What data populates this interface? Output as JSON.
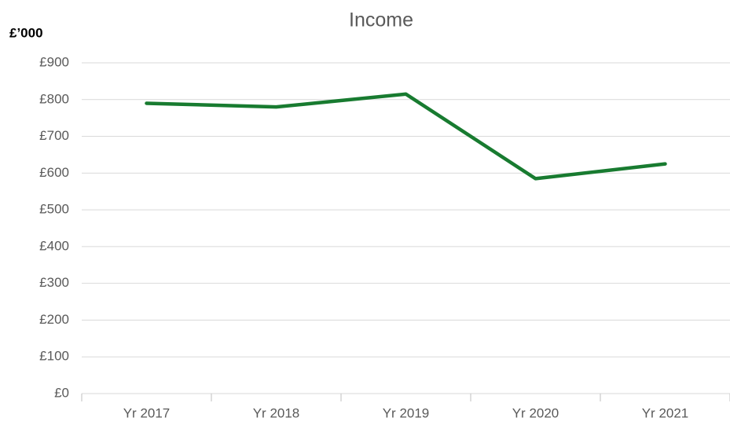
{
  "chart_data": {
    "type": "line",
    "title": "Income",
    "y_label": "£’000",
    "categories": [
      "Yr 2017",
      "Yr 2018",
      "Yr 2019",
      "Yr 2020",
      "Yr 2021"
    ],
    "series": [
      {
        "name": "Income",
        "color": "#187b30",
        "values": [
          790,
          780,
          815,
          585,
          625
        ]
      }
    ],
    "ylim": [
      0,
      900
    ],
    "yticks": [
      {
        "value": 0,
        "label": "£0"
      },
      {
        "value": 100,
        "label": "£100"
      },
      {
        "value": 200,
        "label": "£200"
      },
      {
        "value": 300,
        "label": "£300"
      },
      {
        "value": 400,
        "label": "£400"
      },
      {
        "value": 500,
        "label": "£500"
      },
      {
        "value": 600,
        "label": "£600"
      },
      {
        "value": 700,
        "label": "£700"
      },
      {
        "value": 800,
        "label": "£800"
      },
      {
        "value": 900,
        "label": "£900"
      }
    ],
    "grid": true
  }
}
